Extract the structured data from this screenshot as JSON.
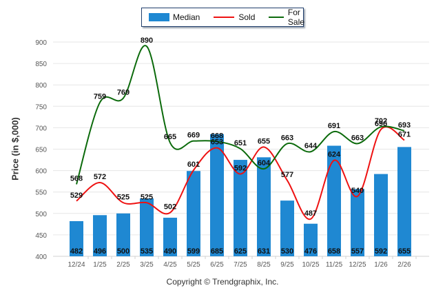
{
  "legend": {
    "items": [
      {
        "label": "Median",
        "color": "#1f88d2",
        "kind": "bar"
      },
      {
        "label": "Sold",
        "color": "#ee1111",
        "kind": "line"
      },
      {
        "label": "For Sale",
        "color": "#0b6a0b",
        "kind": "line"
      }
    ]
  },
  "copyright": "Copyright © Trendgraphix, Inc.",
  "chart_data": {
    "type": "bar",
    "title": "",
    "xlabel": "",
    "ylabel": "Price (in $,000)",
    "ylim": [
      400,
      900
    ],
    "yticks": [
      400,
      450,
      500,
      550,
      600,
      650,
      700,
      750,
      800,
      850,
      900
    ],
    "grid": true,
    "legend_position": "top-center",
    "categories": [
      "12/24",
      "1/25",
      "2/25",
      "3/25",
      "4/25",
      "5/25",
      "6/25",
      "7/25",
      "8/25",
      "9/25",
      "10/25",
      "11/25",
      "12/25",
      "1/26",
      "2/26"
    ],
    "series": [
      {
        "name": "Median",
        "type": "bar",
        "color": "#1f88d2",
        "values": [
          482,
          496,
          500,
          535,
          490,
          599,
          685,
          625,
          631,
          530,
          476,
          658,
          557,
          592,
          655
        ]
      },
      {
        "name": "Sold",
        "type": "line",
        "color": "#ee1111",
        "values": [
          529,
          572,
          525,
          525,
          502,
          601,
          653,
          592,
          655,
          577,
          487,
          624,
          540,
          696,
          671
        ]
      },
      {
        "name": "For Sale",
        "type": "line",
        "color": "#0b6a0b",
        "values": [
          568,
          759,
          769,
          890,
          665,
          669,
          668,
          651,
          604,
          663,
          644,
          691,
          663,
          702,
          693
        ]
      }
    ]
  }
}
